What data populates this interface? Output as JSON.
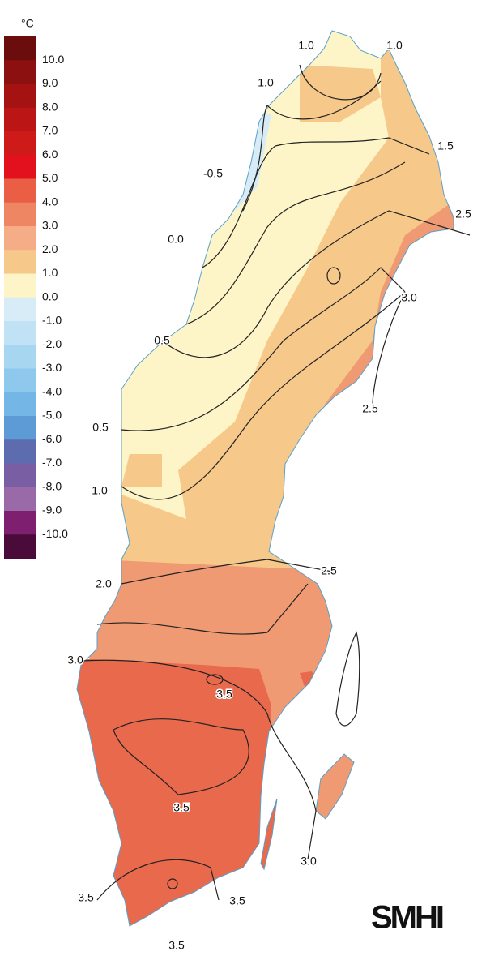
{
  "legend": {
    "unit": "°C",
    "labels": [
      "10.0",
      "9.0",
      "8.0",
      "7.0",
      "6.0",
      "5.0",
      "4.0",
      "3.0",
      "2.0",
      "1.0",
      "0.0",
      "-1.0",
      "-2.0",
      "-3.0",
      "-4.0",
      "-5.0",
      "-6.0",
      "-7.0",
      "-8.0",
      "-9.0",
      "-10.0"
    ],
    "colors": [
      "#6b0d0d",
      "#8c1010",
      "#a51212",
      "#bb1515",
      "#cf1a1a",
      "#e3101e",
      "#e95e44",
      "#ee8563",
      "#f4ad86",
      "#f6c88a",
      "#fdf5c8",
      "#d8ecf8",
      "#c0e2f4",
      "#a7d6f0",
      "#8ec8ec",
      "#74b6e6",
      "#5c9bd6",
      "#5c6cae",
      "#7a5ea4",
      "#9a6aa8",
      "#7e1f70",
      "#4a0a3a"
    ]
  },
  "map": {
    "contour_labels": [
      "1.0",
      "1.0",
      "1.0",
      "1.5",
      "-0.5",
      "2.5",
      "0.0",
      "3.0",
      "0.5",
      "2.5",
      "0.5",
      "1.0",
      "2.0",
      "2.5",
      "3.0",
      "3.5",
      "3.5",
      "3.0",
      "3.5",
      "3.5",
      "3.5"
    ]
  },
  "logo": "SMHI"
}
